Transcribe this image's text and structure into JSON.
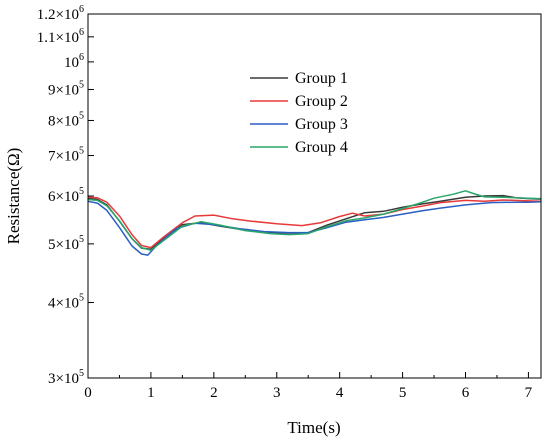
{
  "chart_data": {
    "type": "line",
    "title": "",
    "xlabel": "Time(s)",
    "ylabel": "Resistance(Ω)",
    "y_scale": "log",
    "xlim": [
      0,
      7.2
    ],
    "ylim": [
      300000,
      1200000
    ],
    "x_ticks": [
      0,
      1,
      2,
      3,
      4,
      5,
      6,
      7
    ],
    "x_tick_labels": [
      "0",
      "1",
      "2",
      "3",
      "4",
      "5",
      "6",
      "7"
    ],
    "y_ticks": [
      {
        "value": 300000,
        "mant": "3×10",
        "exp": "5"
      },
      {
        "value": 400000,
        "mant": "4×10",
        "exp": "5"
      },
      {
        "value": 500000,
        "mant": "5×10",
        "exp": "5"
      },
      {
        "value": 600000,
        "mant": "6×10",
        "exp": "5"
      },
      {
        "value": 700000,
        "mant": "7×10",
        "exp": "5"
      },
      {
        "value": 800000,
        "mant": "8×10",
        "exp": "5"
      },
      {
        "value": 900000,
        "mant": "9×10",
        "exp": "5"
      },
      {
        "value": 1000000,
        "mant": "10",
        "exp": "6"
      },
      {
        "value": 1100000,
        "mant": "1.1×10",
        "exp": "6"
      },
      {
        "value": 1200000,
        "mant": "1.2×10",
        "exp": "6"
      }
    ],
    "grid": false,
    "legend_position": "upper-center",
    "series": [
      {
        "name": "Group 1",
        "color": "#3a3a3a",
        "points": [
          [
            0,
            595000
          ],
          [
            0.15,
            592000
          ],
          [
            0.3,
            580000
          ],
          [
            0.5,
            545000
          ],
          [
            0.7,
            510000
          ],
          [
            0.85,
            492000
          ],
          [
            1.0,
            490000
          ],
          [
            1.2,
            510000
          ],
          [
            1.5,
            538000
          ],
          [
            1.8,
            542000
          ],
          [
            2.1,
            535000
          ],
          [
            2.5,
            527000
          ],
          [
            2.9,
            522000
          ],
          [
            3.2,
            521000
          ],
          [
            3.5,
            522000
          ],
          [
            3.8,
            537000
          ],
          [
            4.1,
            550000
          ],
          [
            4.4,
            563000
          ],
          [
            4.7,
            566000
          ],
          [
            5.0,
            575000
          ],
          [
            5.3,
            582000
          ],
          [
            5.6,
            588000
          ],
          [
            6.0,
            597000
          ],
          [
            6.3,
            600000
          ],
          [
            6.6,
            601000
          ],
          [
            6.8,
            596000
          ],
          [
            7.0,
            594000
          ],
          [
            7.2,
            593000
          ]
        ]
      },
      {
        "name": "Group 2",
        "color": "#e8393a",
        "points": [
          [
            0,
            597000
          ],
          [
            0.15,
            596000
          ],
          [
            0.3,
            586000
          ],
          [
            0.5,
            556000
          ],
          [
            0.7,
            518000
          ],
          [
            0.85,
            497000
          ],
          [
            1.0,
            493000
          ],
          [
            1.2,
            513000
          ],
          [
            1.5,
            542000
          ],
          [
            1.7,
            556000
          ],
          [
            2.0,
            558000
          ],
          [
            2.3,
            550000
          ],
          [
            2.6,
            545000
          ],
          [
            3.0,
            540000
          ],
          [
            3.4,
            536000
          ],
          [
            3.7,
            542000
          ],
          [
            4.0,
            555000
          ],
          [
            4.2,
            562000
          ],
          [
            4.4,
            556000
          ],
          [
            4.7,
            560000
          ],
          [
            5.0,
            570000
          ],
          [
            5.3,
            577000
          ],
          [
            5.6,
            585000
          ],
          [
            6.0,
            590000
          ],
          [
            6.3,
            588000
          ],
          [
            6.6,
            591000
          ],
          [
            7.0,
            589000
          ],
          [
            7.2,
            588000
          ]
        ]
      },
      {
        "name": "Group 3",
        "color": "#2b5fc4",
        "points": [
          [
            0,
            588000
          ],
          [
            0.15,
            584000
          ],
          [
            0.3,
            568000
          ],
          [
            0.5,
            532000
          ],
          [
            0.7,
            496000
          ],
          [
            0.85,
            481000
          ],
          [
            0.95,
            479000
          ],
          [
            1.1,
            498000
          ],
          [
            1.4,
            530000
          ],
          [
            1.7,
            541000
          ],
          [
            2.0,
            538000
          ],
          [
            2.4,
            530000
          ],
          [
            2.8,
            524000
          ],
          [
            3.2,
            522000
          ],
          [
            3.5,
            522000
          ],
          [
            3.8,
            532000
          ],
          [
            4.1,
            543000
          ],
          [
            4.4,
            548000
          ],
          [
            4.7,
            553000
          ],
          [
            5.0,
            560000
          ],
          [
            5.3,
            567000
          ],
          [
            5.6,
            573000
          ],
          [
            6.0,
            580000
          ],
          [
            6.4,
            585000
          ],
          [
            6.8,
            586000
          ],
          [
            7.0,
            586000
          ],
          [
            7.2,
            587000
          ]
        ]
      },
      {
        "name": "Group 4",
        "color": "#2aa66a",
        "points": [
          [
            0,
            592000
          ],
          [
            0.15,
            590000
          ],
          [
            0.3,
            578000
          ],
          [
            0.5,
            546000
          ],
          [
            0.7,
            510000
          ],
          [
            0.85,
            493000
          ],
          [
            1.0,
            488000
          ],
          [
            1.2,
            506000
          ],
          [
            1.5,
            535000
          ],
          [
            1.8,
            544000
          ],
          [
            2.1,
            537000
          ],
          [
            2.5,
            526000
          ],
          [
            2.9,
            520000
          ],
          [
            3.2,
            518000
          ],
          [
            3.5,
            520000
          ],
          [
            3.8,
            534000
          ],
          [
            4.1,
            546000
          ],
          [
            4.4,
            552000
          ],
          [
            4.7,
            560000
          ],
          [
            5.0,
            572000
          ],
          [
            5.3,
            585000
          ],
          [
            5.5,
            595000
          ],
          [
            5.8,
            604000
          ],
          [
            6.0,
            612000
          ],
          [
            6.1,
            607000
          ],
          [
            6.3,
            598000
          ],
          [
            6.6,
            597000
          ],
          [
            7.0,
            595000
          ],
          [
            7.2,
            594000
          ]
        ]
      }
    ]
  }
}
